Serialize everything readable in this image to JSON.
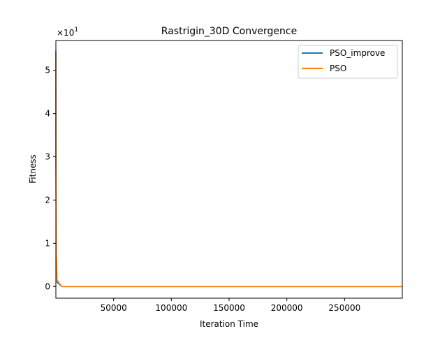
{
  "chart_data": {
    "type": "line",
    "title": "Rastrigin_30D Convergence",
    "xlabel": "Iteration Time",
    "ylabel": "Fitness",
    "y_scale_label": "×10",
    "y_scale_exponent": "1",
    "xlim": [
      1,
      300000
    ],
    "ylim": [
      -0.27,
      5.69
    ],
    "x_ticks": [
      50000,
      100000,
      150000,
      200000,
      250000
    ],
    "x_tick_labels": [
      "50000",
      "100000",
      "150000",
      "200000",
      "250000"
    ],
    "y_ticks": [
      0,
      1,
      2,
      3,
      4,
      5
    ],
    "y_tick_labels": [
      "0",
      "1",
      "2",
      "3",
      "4",
      "5"
    ],
    "grid": false,
    "legend_position": "top-right",
    "series": [
      {
        "name": "PSO_improve",
        "color": "#1f77b4",
        "x": [
          1,
          60,
          300,
          1000,
          5000,
          300000
        ],
        "y": [
          5.45,
          3.0,
          0.8,
          0.1,
          0.0,
          0.0
        ]
      },
      {
        "name": "PSO",
        "color": "#ff7f0e",
        "x": [
          1,
          60,
          300,
          1000,
          5000,
          300000
        ],
        "y": [
          5.45,
          3.1,
          0.9,
          0.15,
          0.0,
          0.0
        ]
      }
    ]
  }
}
